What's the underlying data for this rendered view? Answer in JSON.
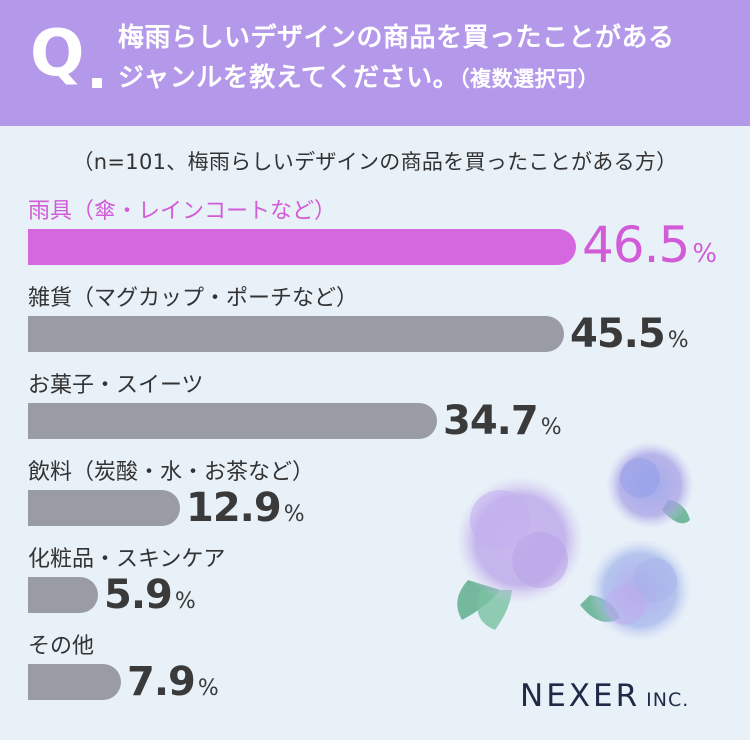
{
  "question": {
    "mark": "Q",
    "line1": "梅雨らしいデザインの商品を買ったことがある",
    "line2": "ジャンルを教えてください。",
    "line2_note": "（複数選択可）"
  },
  "note": "（n=101、梅雨らしいデザインの商品を買ったことがある方）",
  "chart_data": {
    "type": "bar",
    "orientation": "horizontal",
    "categories": [
      "雨具（傘・レインコートなど）",
      "雑貨（マグカップ・ポーチなど）",
      "お菓子・スイーツ",
      "飲料（炭酸・水・お茶など）",
      "化粧品・スキンケア",
      "その他"
    ],
    "values": [
      46.5,
      45.5,
      34.7,
      12.9,
      5.9,
      7.9
    ],
    "value_labels": [
      "46.5",
      "45.5",
      "34.7",
      "12.9",
      "5.9",
      "7.9"
    ],
    "unit": "%",
    "highlight_index": 0,
    "colors": {
      "highlight": "#d668df",
      "highlight_text": "#d25bd8",
      "default": "#9a9ca3"
    }
  },
  "logo": {
    "main": "NEXER",
    "sub": "INC."
  },
  "colors": {
    "header": "#b498ea",
    "background": "#e8f1f8"
  },
  "decoration": "hydrangea-illustration"
}
